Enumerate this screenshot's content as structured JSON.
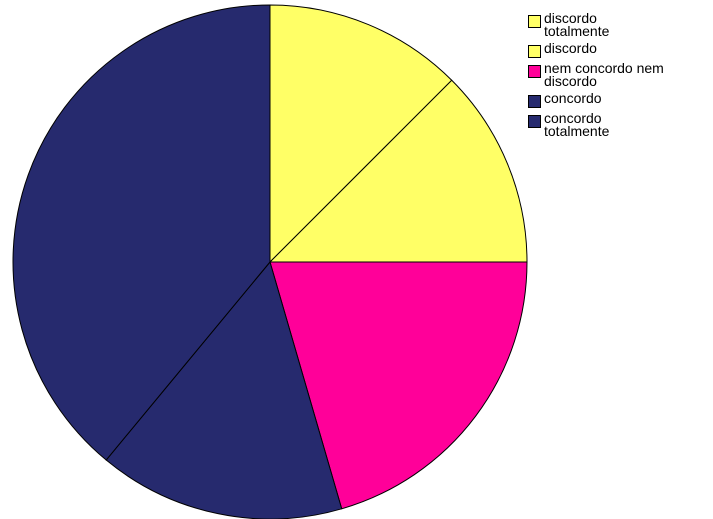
{
  "chart_data": {
    "type": "pie",
    "categories": [
      "discordo totalmente",
      "discordo",
      "nem concordo nem discordo",
      "concordo",
      "concordo totalmente"
    ],
    "legend": [
      {
        "label_lines": [
          "discordo",
          "totalmente"
        ],
        "color": "#ffff66"
      },
      {
        "label_lines": [
          "discordo"
        ],
        "color": "#ffff66"
      },
      {
        "label_lines": [
          "nem concordo nem",
          "discordo"
        ],
        "color": "#ff0099"
      },
      {
        "label_lines": [
          "concordo"
        ],
        "color": "#262a6e"
      },
      {
        "label_lines": [
          "concordo",
          "totalmente"
        ],
        "color": "#262a6e"
      }
    ],
    "values": [
      12.5,
      12.5,
      20.5,
      15.5,
      39.0
    ],
    "unit": "percent",
    "start": "12 o'clock",
    "direction": "clockwise",
    "legend_position": "top-right"
  }
}
